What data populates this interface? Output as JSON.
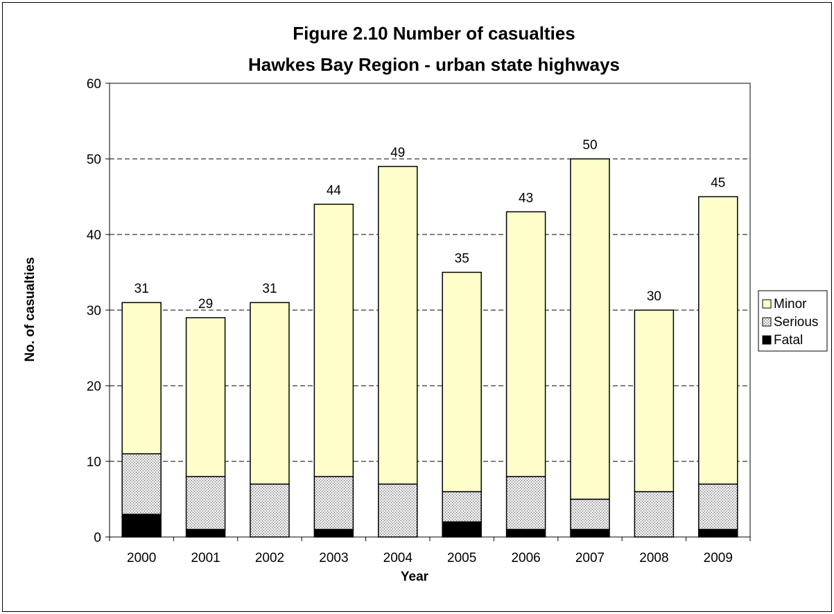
{
  "chart_data": {
    "type": "bar",
    "stacked": true,
    "title": "Figure 2.10 Number of casualties",
    "subtitle": "Hawkes Bay Region - urban  state highways",
    "xlabel": "Year",
    "ylabel": "No. of casualties",
    "ylim": [
      0,
      60
    ],
    "yticks": [
      0,
      10,
      20,
      30,
      40,
      50,
      60
    ],
    "grid": "horizontal dashed",
    "legend_position": "right",
    "categories": [
      "2000",
      "2001",
      "2002",
      "2003",
      "2004",
      "2005",
      "2006",
      "2007",
      "2008",
      "2009"
    ],
    "series": [
      {
        "name": "Fatal",
        "values": [
          3,
          1,
          0,
          1,
          0,
          2,
          1,
          1,
          0,
          1
        ],
        "color": "#000000",
        "pattern": "solid"
      },
      {
        "name": "Serious",
        "values": [
          8,
          7,
          7,
          7,
          7,
          4,
          7,
          4,
          6,
          6
        ],
        "color": "#c0c0c0",
        "pattern": "dotted"
      },
      {
        "name": "Minor",
        "values": [
          20,
          21,
          24,
          36,
          42,
          29,
          35,
          45,
          24,
          38
        ],
        "color": "#ffffcc",
        "pattern": "solid"
      }
    ],
    "totals": [
      31,
      29,
      31,
      44,
      49,
      35,
      43,
      50,
      30,
      45
    ],
    "legend_order": [
      "Minor",
      "Serious",
      "Fatal"
    ]
  }
}
